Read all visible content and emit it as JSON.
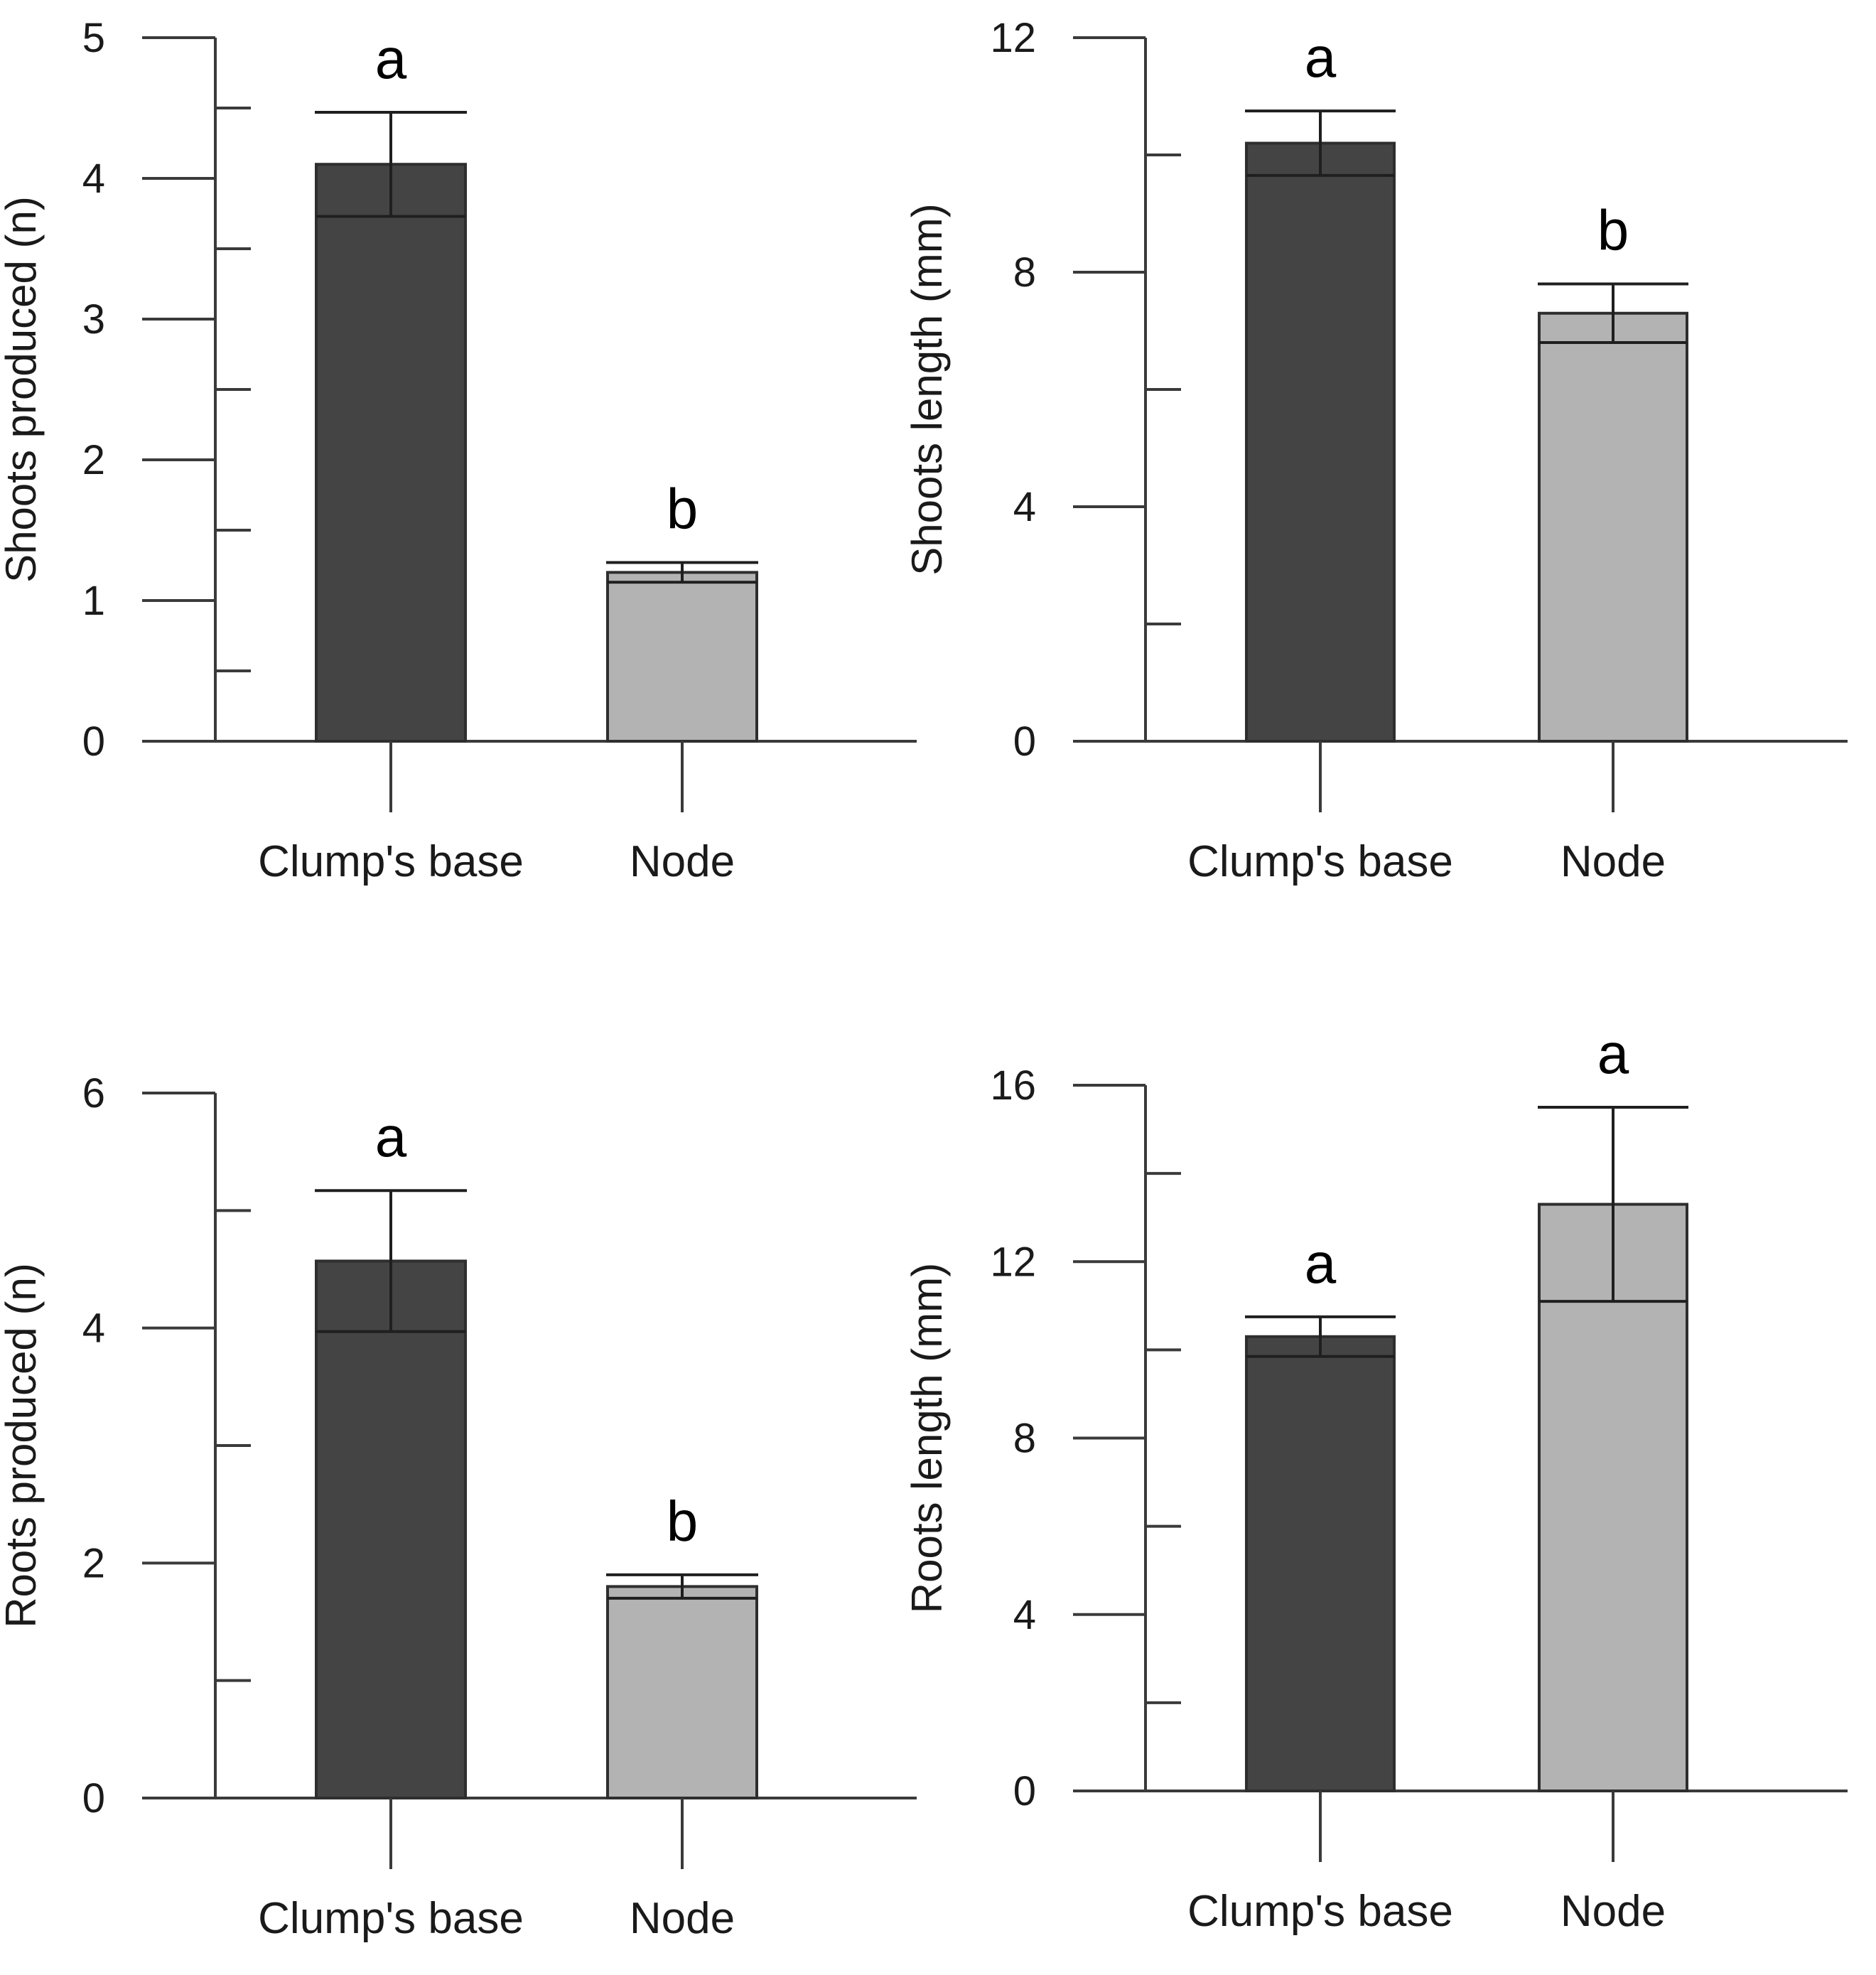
{
  "chart_data": [
    {
      "type": "bar",
      "categories": [
        "Clump's base",
        "Node"
      ],
      "ylabel": "Shoots produced (n)",
      "ylim": [
        0,
        5
      ],
      "yticks": [
        "0",
        "1",
        "2",
        "3",
        "4",
        "5"
      ],
      "values": [
        4.1,
        1.2
      ],
      "errors": [
        0.37,
        0.07
      ],
      "significance": [
        "a",
        "b"
      ],
      "bar_colors": [
        "#444444",
        "#b3b3b3"
      ]
    },
    {
      "type": "bar",
      "categories": [
        "Clump's base",
        "Node"
      ],
      "ylabel": "Shoots length (mm)",
      "ylim": [
        0,
        12
      ],
      "yticks": [
        "0",
        "4",
        "8",
        "12"
      ],
      "values": [
        10.2,
        7.3
      ],
      "errors": [
        0.55,
        0.5
      ],
      "significance": [
        "a",
        "b"
      ],
      "bar_colors": [
        "#444444",
        "#b3b3b3"
      ]
    },
    {
      "type": "bar",
      "categories": [
        "Clump's base",
        "Node"
      ],
      "ylabel": "Roots produced (n)",
      "ylim": [
        0,
        6
      ],
      "yticks": [
        "0",
        "2",
        "4",
        "6"
      ],
      "values": [
        4.57,
        1.8
      ],
      "errors": [
        0.6,
        0.1
      ],
      "significance": [
        "a",
        "b"
      ],
      "bar_colors": [
        "#444444",
        "#b3b3b3"
      ]
    },
    {
      "type": "bar",
      "categories": [
        "Clump's base",
        "Node"
      ],
      "ylabel": "Roots length (mm)",
      "ylim": [
        0,
        16
      ],
      "yticks": [
        "0",
        "4",
        "8",
        "12",
        "16"
      ],
      "values": [
        10.3,
        13.3
      ],
      "errors": [
        0.45,
        2.2
      ],
      "significance": [
        "a",
        "a"
      ],
      "bar_colors": [
        "#444444",
        "#b3b3b3"
      ]
    }
  ]
}
